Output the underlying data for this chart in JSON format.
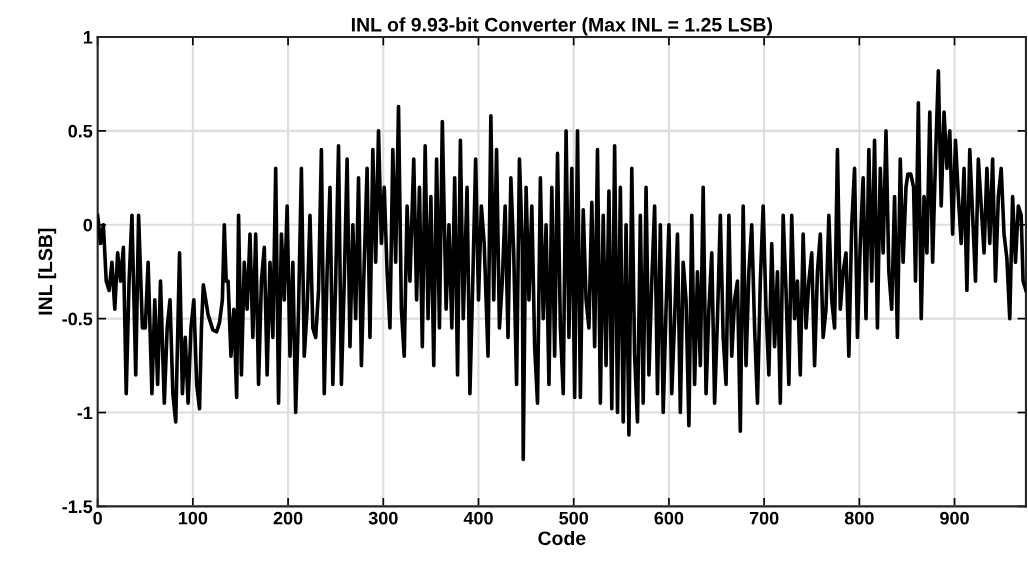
{
  "chart_data": {
    "type": "line",
    "title": "INL of 9.93-bit Converter (Max INL = 1.25 LSB)",
    "xlabel": "Code",
    "ylabel": "INL [LSB]",
    "xlim": [
      0,
      975
    ],
    "xticks": [
      0,
      100,
      200,
      300,
      400,
      500,
      600,
      700,
      800,
      900
    ],
    "ylim": [
      -1.5,
      1
    ],
    "yticks": [
      -1.5,
      -1,
      -0.5,
      0,
      0.5,
      1
    ],
    "grid": true,
    "marker": "none",
    "line_style": "solid",
    "series": [
      {
        "color": "#000000",
        "x": [
          0,
          3,
          6,
          9,
          12,
          15,
          18,
          21,
          24,
          27,
          30,
          33,
          36,
          40,
          43,
          47,
          50,
          53,
          57,
          60,
          63,
          66,
          70,
          73,
          76,
          79,
          82,
          86,
          89,
          92,
          95,
          98,
          101,
          104,
          107,
          109,
          111,
          116,
          121,
          125,
          128,
          131,
          133,
          135,
          137,
          140,
          143,
          146,
          148,
          151,
          154,
          157,
          160,
          163,
          166,
          169,
          172,
          175,
          178,
          181,
          184,
          187,
          190,
          193,
          196,
          199,
          202,
          205,
          208,
          211,
          214,
          217,
          220,
          223,
          226,
          229,
          232,
          235,
          238,
          241,
          244,
          247,
          250,
          253,
          256,
          259,
          262,
          265,
          268,
          271,
          274,
          277,
          280,
          283,
          286,
          289,
          292,
          295,
          298,
          301,
          304,
          307,
          310,
          313,
          316,
          319,
          322,
          325,
          328,
          332,
          335,
          338,
          341,
          344,
          347,
          350,
          353,
          356,
          359,
          362,
          366,
          369,
          372,
          375,
          378,
          381,
          384,
          388,
          391,
          394,
          397,
          400,
          403,
          406,
          410,
          413,
          416,
          419,
          422,
          425,
          428,
          431,
          434,
          437,
          440,
          443,
          446,
          447,
          450,
          453,
          456,
          459,
          462,
          465,
          468,
          471,
          474,
          477,
          480,
          483,
          486,
          489,
          492,
          495,
          498,
          501,
          504,
          507,
          510,
          513,
          516,
          519,
          522,
          525,
          528,
          531,
          534,
          537,
          540,
          543,
          546,
          549,
          552,
          555,
          558,
          561,
          564,
          567,
          570,
          573,
          576,
          579,
          582,
          585,
          588,
          591,
          594,
          597,
          600,
          603,
          606,
          609,
          612,
          615,
          618,
          621,
          624,
          627,
          630,
          633,
          636,
          639,
          642,
          645,
          648,
          651,
          654,
          657,
          660,
          663,
          666,
          669,
          672,
          675,
          678,
          681,
          684,
          687,
          690,
          693,
          696,
          699,
          702,
          705,
          708,
          711,
          714,
          717,
          720,
          723,
          726,
          729,
          732,
          735,
          738,
          741,
          744,
          747,
          750,
          753,
          756,
          759,
          762,
          765,
          768,
          771,
          774,
          777,
          780,
          783,
          786,
          789,
          792,
          795,
          798,
          801,
          804,
          807,
          810,
          813,
          816,
          819,
          822,
          825,
          828,
          831,
          834,
          837,
          840,
          843,
          846,
          849,
          851,
          854,
          857,
          859,
          862,
          865,
          868,
          871,
          874,
          877,
          880,
          883,
          886,
          889,
          892,
          895,
          898,
          901,
          904,
          907,
          910,
          913,
          916,
          919,
          922,
          925,
          928,
          931,
          934,
          937,
          940,
          943,
          946,
          949,
          952,
          955,
          958,
          961,
          964,
          967,
          970,
          972,
          975
        ],
        "values": [
          0.05,
          -0.1,
          0.0,
          -0.3,
          -0.35,
          -0.2,
          -0.45,
          -0.15,
          -0.3,
          -0.12,
          -0.9,
          -0.3,
          0.05,
          -0.8,
          0.05,
          -0.55,
          -0.55,
          -0.2,
          -0.9,
          -0.4,
          -0.85,
          -0.3,
          -0.95,
          -0.55,
          -0.4,
          -0.9,
          -1.05,
          -0.15,
          -0.9,
          -0.6,
          -0.95,
          -0.55,
          -0.4,
          -0.85,
          -0.98,
          -0.55,
          -0.32,
          -0.48,
          -0.56,
          -0.57,
          -0.52,
          -0.4,
          0.0,
          -0.3,
          -0.3,
          -0.7,
          -0.45,
          -0.92,
          0.05,
          -0.8,
          -0.2,
          -0.45,
          -0.05,
          -0.6,
          -0.05,
          -0.85,
          -0.3,
          -0.12,
          -0.8,
          -0.2,
          -0.6,
          0.3,
          -0.95,
          -0.05,
          -0.4,
          0.1,
          -0.7,
          -0.2,
          -1.0,
          -0.45,
          0.3,
          -0.7,
          -0.45,
          0.05,
          -0.55,
          -0.6,
          -0.35,
          0.4,
          -0.9,
          -0.25,
          0.2,
          -0.85,
          -0.3,
          0.42,
          -0.85,
          -0.3,
          0.35,
          -0.65,
          0.0,
          -0.5,
          0.25,
          -0.75,
          -0.2,
          0.3,
          -0.6,
          0.4,
          -0.2,
          0.5,
          -0.1,
          0.2,
          -0.25,
          -0.55,
          0.4,
          -0.2,
          0.63,
          -0.45,
          -0.7,
          0.1,
          -0.3,
          0.35,
          -0.4,
          0.2,
          -0.65,
          0.42,
          -0.5,
          0.15,
          -0.75,
          0.35,
          -0.55,
          0.55,
          -0.45,
          0.0,
          -0.55,
          0.25,
          -0.8,
          0.45,
          -0.5,
          0.2,
          -0.9,
          -0.3,
          0.35,
          -0.4,
          0.1,
          -0.1,
          -0.7,
          0.58,
          -0.4,
          0.4,
          -0.55,
          -0.3,
          0.1,
          -0.6,
          0.25,
          -0.15,
          -0.85,
          0.35,
          -0.1,
          -1.25,
          0.2,
          -0.4,
          0.1,
          -0.65,
          -0.95,
          0.25,
          -0.5,
          0.0,
          -0.85,
          0.2,
          -0.7,
          0.38,
          -0.55,
          -0.9,
          0.5,
          -0.6,
          0.3,
          -0.92,
          0.5,
          -0.92,
          0.08,
          -0.4,
          -0.55,
          0.12,
          -0.65,
          0.4,
          -0.95,
          0.05,
          -0.75,
          0.18,
          -0.98,
          0.42,
          -1.0,
          0.2,
          -1.05,
          0.0,
          -1.12,
          0.3,
          -0.7,
          -1.05,
          0.05,
          -0.95,
          0.2,
          -0.8,
          -0.3,
          0.1,
          -0.9,
          0.0,
          -1.0,
          -0.45,
          0.0,
          -0.9,
          -0.5,
          -0.05,
          -1.0,
          -0.2,
          -0.4,
          -1.07,
          0.05,
          -0.85,
          -0.25,
          -0.75,
          0.2,
          -0.9,
          -0.45,
          -0.15,
          -0.95,
          -0.5,
          0.05,
          -0.6,
          -0.85,
          0.05,
          -0.7,
          -0.4,
          -0.3,
          -1.1,
          0.1,
          -0.75,
          -0.25,
          0.0,
          -0.55,
          -0.95,
          -0.3,
          0.1,
          -0.45,
          -0.8,
          -0.1,
          -0.65,
          -0.25,
          -0.95,
          0.05,
          -0.35,
          -0.85,
          0.05,
          -0.5,
          -0.3,
          -0.8,
          -0.05,
          -0.55,
          -0.3,
          -0.15,
          -0.75,
          -0.25,
          -0.05,
          -0.6,
          -0.45,
          0.05,
          -0.4,
          -0.55,
          0.4,
          -0.45,
          -0.25,
          -0.15,
          -0.7,
          0.0,
          0.3,
          -0.6,
          -0.1,
          0.25,
          -0.5,
          0.4,
          -0.3,
          0.45,
          -0.55,
          0.3,
          -0.15,
          0.5,
          -0.25,
          -0.45,
          0.15,
          -0.6,
          0.35,
          -0.2,
          0.2,
          0.27,
          0.27,
          0.2,
          -0.3,
          0.65,
          -0.5,
          0.15,
          -0.15,
          0.6,
          -0.2,
          0.35,
          0.82,
          0.1,
          0.6,
          0.3,
          0.5,
          -0.05,
          0.45,
          0.15,
          -0.1,
          0.3,
          -0.35,
          0.4,
          0.05,
          -0.3,
          0.35,
          0.1,
          -0.15,
          0.3,
          -0.1,
          0.35,
          -0.3,
          0.15,
          0.3,
          -0.05,
          -0.18,
          -0.5,
          0.15,
          -0.2,
          0.1,
          0.05,
          -0.3,
          -0.35
        ]
      }
    ]
  }
}
